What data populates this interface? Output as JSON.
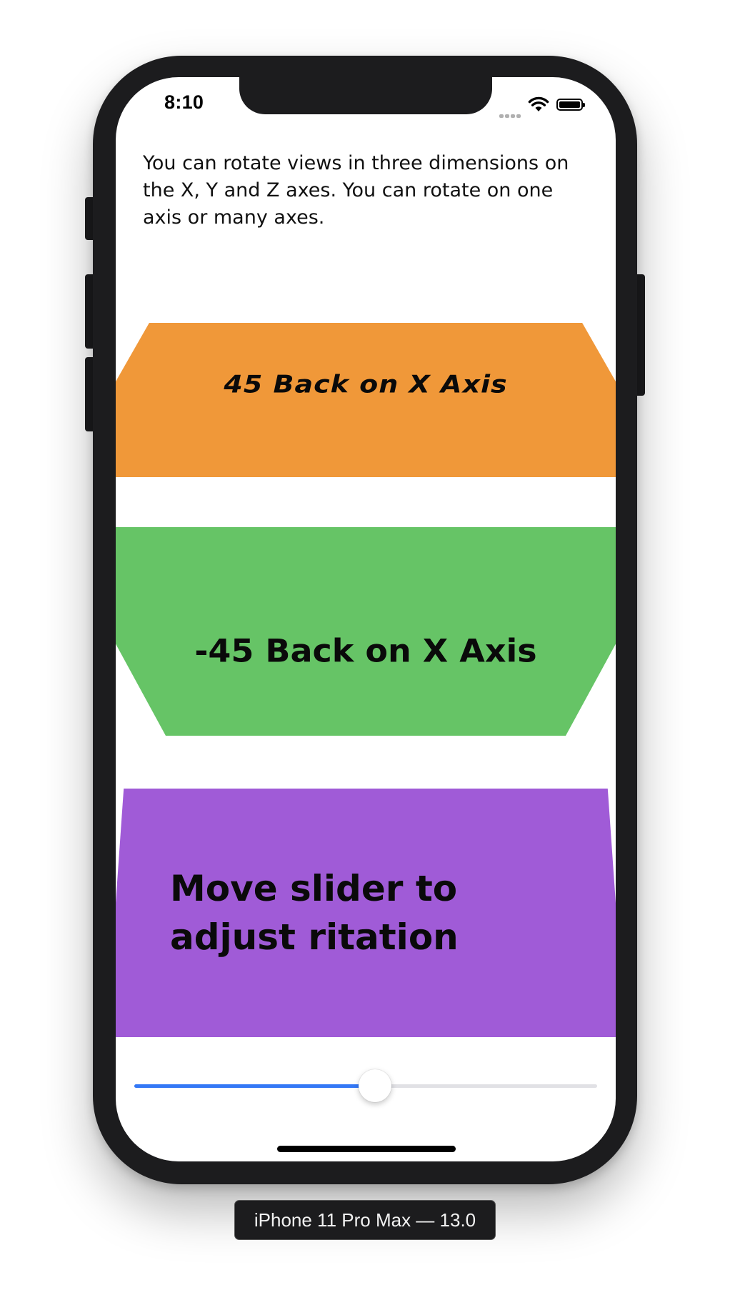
{
  "status_bar": {
    "time": "8:10",
    "icons": [
      "cellular-signal-icon",
      "wifi-icon",
      "battery-icon"
    ]
  },
  "intro_text": "You can rotate views in three dimensions on the X, Y and Z axes. You can rotate on one axis or many axes.",
  "panels": [
    {
      "label": "45 Back on X Axis",
      "color": "#f09839"
    },
    {
      "label": "-45 Back on X Axis",
      "color": "#66c466"
    },
    {
      "label": "Move slider to adjust ritation",
      "color": "#a05bd7"
    }
  ],
  "slider": {
    "value": 0.52,
    "fill_color": "#3478f6",
    "track_color": "#e1e1e5"
  },
  "device_label": "iPhone 11 Pro Max — 13.0"
}
